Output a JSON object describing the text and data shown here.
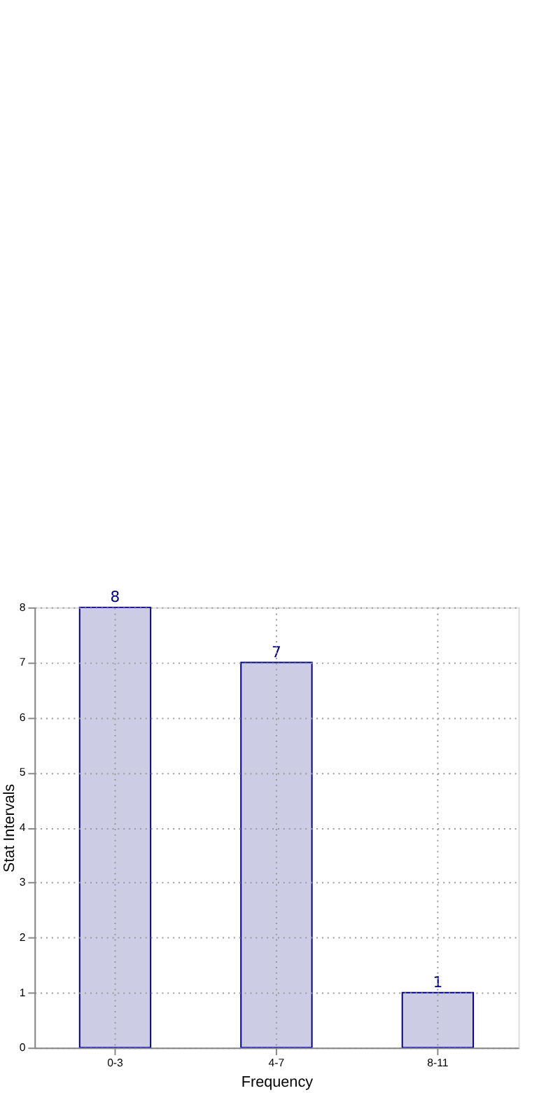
{
  "chart_data": {
    "type": "bar",
    "xlabel": "Frequency",
    "ylabel": "Stat Intervals",
    "categories": [
      "0-3",
      "4-7",
      "8-11"
    ],
    "values": [
      8,
      7,
      1
    ],
    "color": "#cccce5",
    "ylim": [
      0,
      8
    ],
    "yticks": [
      0,
      1,
      2,
      3,
      4,
      5,
      6,
      7,
      8
    ],
    "grid": true,
    "data_labels": true
  }
}
